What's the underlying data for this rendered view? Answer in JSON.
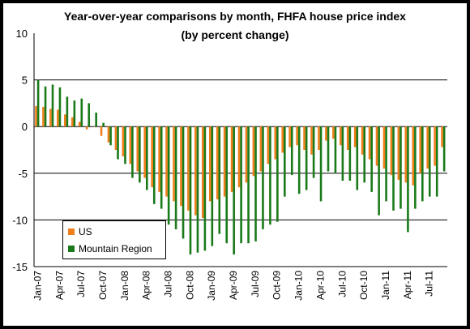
{
  "chart_data": {
    "type": "bar",
    "title": "Year-over-year comparisons by month, FHFA house price index",
    "subtitle": "(by percent change)",
    "ylim": [
      -15,
      10
    ],
    "yticks": [
      10,
      5,
      0,
      -5,
      -10,
      -15
    ],
    "grid": true,
    "legend_position": "bottom-left",
    "x_tick_labels": [
      "Jan-07",
      "Apr-07",
      "Jul-07",
      "Oct-07",
      "Jan-08",
      "Apr-08",
      "Jul-08",
      "Oct-08",
      "Jan-09",
      "Apr-09",
      "Jul-09",
      "Oct-09",
      "Jan-10",
      "Apr-10",
      "Jul-10",
      "Oct-10",
      "Jan-11",
      "Apr-11",
      "Jul-11"
    ],
    "x_tick_every": 3,
    "categories": [
      "Jan-07",
      "Feb-07",
      "Mar-07",
      "Apr-07",
      "May-07",
      "Jun-07",
      "Jul-07",
      "Aug-07",
      "Sep-07",
      "Oct-07",
      "Nov-07",
      "Dec-07",
      "Jan-08",
      "Feb-08",
      "Mar-08",
      "Apr-08",
      "May-08",
      "Jun-08",
      "Jul-08",
      "Aug-08",
      "Sep-08",
      "Oct-08",
      "Nov-08",
      "Dec-08",
      "Jan-09",
      "Feb-09",
      "Mar-09",
      "Apr-09",
      "May-09",
      "Jun-09",
      "Jul-09",
      "Aug-09",
      "Sep-09",
      "Oct-09",
      "Nov-09",
      "Dec-09",
      "Jan-10",
      "Feb-10",
      "Mar-10",
      "Apr-10",
      "May-10",
      "Jun-10",
      "Jul-10",
      "Aug-10",
      "Sep-10",
      "Oct-10",
      "Nov-10",
      "Dec-10",
      "Jan-11",
      "Feb-11",
      "Mar-11",
      "Apr-11",
      "May-11",
      "Jun-11",
      "Jul-11",
      "Aug-11",
      "Sep-11"
    ],
    "series": [
      {
        "name": "US",
        "color": "#f07f1b",
        "values": [
          2.2,
          2.1,
          1.9,
          1.8,
          1.3,
          1.0,
          0.5,
          -0.3,
          0.0,
          -1.0,
          -1.7,
          -2.5,
          -3.2,
          -4.0,
          -4.8,
          -5.5,
          -6.5,
          -7.0,
          -7.5,
          -8.0,
          -8.5,
          -9.0,
          -9.5,
          -9.8,
          -8.0,
          -7.8,
          -7.5,
          -7.0,
          -6.5,
          -6.0,
          -5.3,
          -4.8,
          -4.0,
          -3.5,
          -2.8,
          -2.2,
          -2.0,
          -2.5,
          -3.0,
          -2.5,
          -1.5,
          -1.3,
          -2.0,
          -2.5,
          -2.2,
          -3.0,
          -3.5,
          -4.2,
          -4.5,
          -5.2,
          -5.7,
          -6.0,
          -6.3,
          -5.0,
          -4.5,
          -4.2,
          -2.2
        ]
      },
      {
        "name": "Mountain Region",
        "color": "#1a7a1a",
        "values": [
          5.0,
          4.3,
          4.5,
          4.2,
          3.2,
          2.8,
          3.0,
          2.5,
          1.5,
          0.4,
          -2.0,
          -3.5,
          -4.0,
          -5.5,
          -6.0,
          -6.8,
          -8.3,
          -8.8,
          -10.5,
          -11.0,
          -12.0,
          -13.7,
          -13.5,
          -13.3,
          -12.8,
          -11.5,
          -12.5,
          -13.7,
          -12.5,
          -12.5,
          -12.3,
          -11.0,
          -10.5,
          -10.2,
          -7.5,
          -5.2,
          -7.2,
          -6.8,
          -5.5,
          -8.0,
          -4.8,
          -5.0,
          -5.8,
          -5.8,
          -6.8,
          -6.0,
          -7.0,
          -9.5,
          -8.0,
          -9.0,
          -8.8,
          -11.3,
          -8.8,
          -8.0,
          -7.5,
          -7.5,
          -4.8
        ]
      }
    ]
  }
}
